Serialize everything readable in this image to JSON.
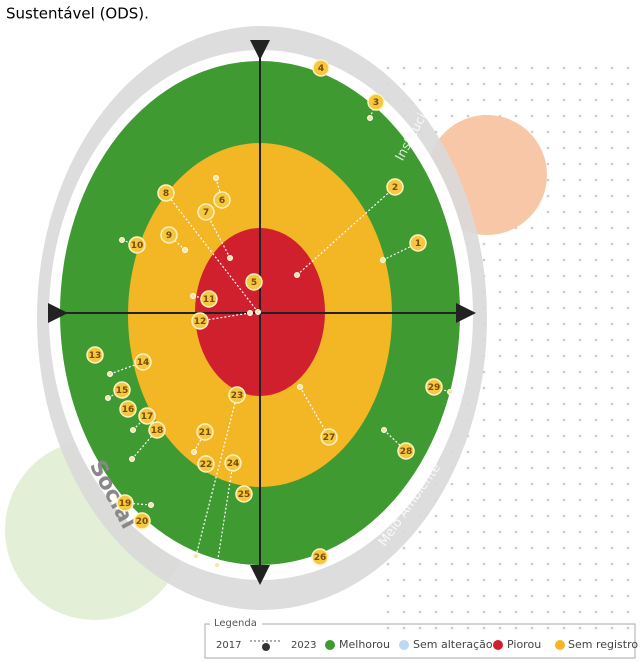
{
  "header": {
    "text": "Sustentável (ODS)."
  },
  "rings": [
    "Institucional",
    "Meio Ambiente",
    "Social"
  ],
  "markers": [
    "1",
    "2",
    "3",
    "4",
    "5",
    "6",
    "7",
    "8",
    "9",
    "10",
    "11",
    "12",
    "13",
    "14",
    "15",
    "16",
    "17",
    "18",
    "19",
    "20",
    "21",
    "22",
    "23",
    "24",
    "25",
    "26",
    "27",
    "28",
    "29"
  ],
  "legend": {
    "title": "Legenda",
    "from": "2017",
    "to": "2023",
    "items": [
      "Melhorou",
      "Sem alteração",
      "Piorou",
      "Sem registro"
    ]
  }
}
